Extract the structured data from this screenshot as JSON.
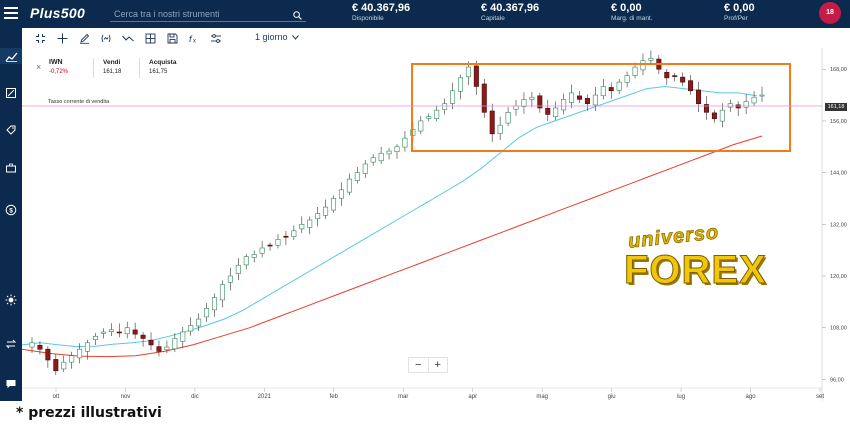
{
  "header": {
    "logo": "Plus500",
    "search_placeholder": "Cerca tra i nostri strumenti",
    "metrics": [
      {
        "value": "€ 40.367,96",
        "label": "Disponibile"
      },
      {
        "value": "€ 40.367,96",
        "label": "Capitale"
      },
      {
        "value": "€ 0,00",
        "label": "Marg. di mant."
      },
      {
        "value": "€ 0,00",
        "label": "Prof/Per"
      }
    ],
    "avatar": "18"
  },
  "sidebar": {
    "icons": [
      "chart-line-icon",
      "expand-icon",
      "tag-icon",
      "briefcase-icon",
      "dollar-icon",
      "sun-icon",
      "swap-icon",
      "chat-icon"
    ]
  },
  "toolbar": {
    "icons": [
      "collapse-icon",
      "crosshair-icon",
      "pencil-icon",
      "indicator-icon",
      "trend-icon",
      "grid-icon",
      "save-icon",
      "function-icon",
      "settings-icon"
    ],
    "timeframe": "1 giorno"
  },
  "instrument": {
    "symbol": "IWN",
    "change": "-0,72%",
    "sell_label": "Vendi",
    "sell_value": "161,18",
    "buy_label": "Acquista",
    "buy_value": "161,75"
  },
  "chart": {
    "sell_line_label": "Tasso corrente di vendita",
    "current_price_tag": "161,18",
    "zoom_out": "−",
    "zoom_in": "+"
  },
  "chart_data": {
    "type": "candlestick",
    "y_ticks": [
      "168,00",
      "156,00",
      "144,00",
      "132,00",
      "120,00",
      "108,00",
      "96,00"
    ],
    "x_ticks": [
      "ott",
      "nov",
      "dic",
      "2021",
      "feb",
      "mar",
      "apr",
      "mag",
      "giu",
      "lug",
      "ago",
      "set"
    ],
    "ylim": [
      94,
      172
    ],
    "current_price": 161.18,
    "closes": [
      104.5,
      103.0,
      100.5,
      98.0,
      100.0,
      101.5,
      103.0,
      104.5,
      106.0,
      107.0,
      107.5,
      107.0,
      108.0,
      106.5,
      105.5,
      104.0,
      102.5,
      103.5,
      105.5,
      107.0,
      108.5,
      110.0,
      112.5,
      115.0,
      118.0,
      120.0,
      122.5,
      124.5,
      125.0,
      126.5,
      127.0,
      128.5,
      129.0,
      130.5,
      132.0,
      133.0,
      134.5,
      136.0,
      138.0,
      140.0,
      142.5,
      144.0,
      146.0,
      147.5,
      148.5,
      149.0,
      150.0,
      152.0,
      154.0,
      156.0,
      157.0,
      158.5,
      160.0,
      163.0,
      166.0,
      168.5,
      164.0,
      158.0,
      153.0,
      155.0,
      158.0,
      159.5,
      161.0,
      161.5,
      159.0,
      157.5,
      159.0,
      161.0,
      162.5,
      161.0,
      160.0,
      162.0,
      164.0,
      163.0,
      165.0,
      166.5,
      168.5,
      170.0,
      170.5,
      168.0,
      166.0,
      166.5,
      165.0,
      163.0,
      160.0,
      158.0,
      156.5,
      158.5,
      160.0,
      159.0,
      160.5,
      161.5,
      162.0
    ],
    "moving_average_short": [
      104.0,
      104.5,
      104.0,
      103.6,
      103.7,
      104.2,
      104.5,
      105.0,
      106.0,
      107.2,
      108.5,
      110.0,
      112.0,
      114.5,
      117.0,
      119.5,
      122.0,
      124.5,
      127.0,
      129.5,
      132.0,
      134.5,
      137.0,
      139.5,
      142.0,
      145.0,
      148.5,
      152.0,
      154.5,
      156.0,
      157.5,
      159.0,
      160.5,
      162.0,
      163.5,
      164.0,
      163.5,
      163.0,
      162.5,
      162.5,
      161.8
    ],
    "moving_average_long": [
      103.0,
      102.0,
      101.4,
      101.3,
      101.5,
      102.5,
      104.0,
      106.0,
      108.0,
      110.5,
      113.0,
      115.5,
      118.0,
      120.5,
      123.0,
      125.5,
      128.0,
      130.5,
      133.0,
      135.5,
      138.0,
      140.5,
      143.0,
      145.5,
      148.0,
      150.5,
      152.5
    ]
  },
  "watermark": {
    "line1": "universo",
    "line2": "FOREX"
  },
  "footnote": "* prezzi illustrativi"
}
